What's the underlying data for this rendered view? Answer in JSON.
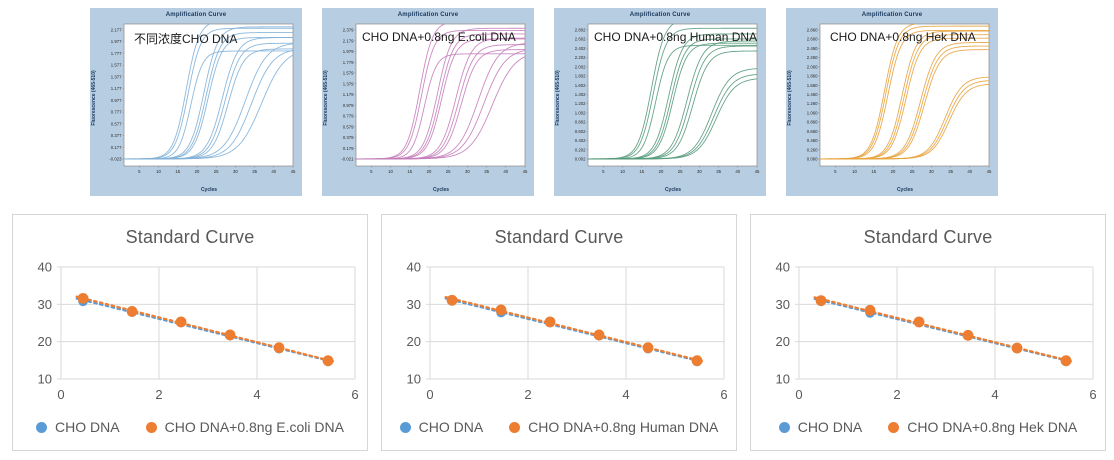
{
  "chart_data": [
    {
      "type": "line",
      "title": "Amplification Curve",
      "annotation": "不同浓度CHO DNA",
      "xlabel": "Cycles",
      "ylabel": "Fluorescence (465-510)",
      "xlim": [
        1,
        45
      ],
      "x_ticks": [
        5,
        10,
        15,
        20,
        25,
        30,
        35,
        40,
        45
      ],
      "y_tick_labels": [
        "2.177",
        "1.977",
        "1.777",
        "1.577",
        "1.377",
        "1.177",
        "0.977",
        "0.777",
        "0.577",
        "0.377",
        "0.177",
        "-0.023"
      ],
      "line_color": "#7fb0d8",
      "panel_bg": "#b7cde1",
      "curves": [
        {
          "midpoint": 17.2,
          "plateau": 0.975,
          "steepness": 0.6
        },
        {
          "midpoint": 17.7,
          "plateau": 0.92,
          "steepness": 0.6
        },
        {
          "midpoint": 18.4,
          "plateau": 0.76,
          "steepness": 0.65
        },
        {
          "midpoint": 21.8,
          "plateau": 0.93,
          "steepness": 0.55
        },
        {
          "midpoint": 22.4,
          "plateau": 0.89,
          "steepness": 0.55
        },
        {
          "midpoint": 22.9,
          "plateau": 0.855,
          "steepness": 0.55
        },
        {
          "midpoint": 26.6,
          "plateau": 0.855,
          "steepness": 0.5
        },
        {
          "midpoint": 27.3,
          "plateau": 0.815,
          "steepness": 0.5
        },
        {
          "midpoint": 28.1,
          "plateau": 0.775,
          "steepness": 0.5
        },
        {
          "midpoint": 32.6,
          "plateau": 0.82,
          "steepness": 0.36
        },
        {
          "midpoint": 34.2,
          "plateau": 0.78,
          "steepness": 0.36
        },
        {
          "midpoint": 36.8,
          "plateau": 0.78,
          "steepness": 0.33
        }
      ]
    },
    {
      "type": "line",
      "title": "Amplification Curve",
      "annotation": "CHO DNA+0.8ng E.coli DNA",
      "xlabel": "Cycles",
      "ylabel": "Fluorescence (465-510)",
      "xlim": [
        1,
        45
      ],
      "x_ticks": [
        5,
        10,
        15,
        20,
        25,
        30,
        35,
        40,
        45
      ],
      "y_tick_labels": [
        "2.379",
        "2.179",
        "1.979",
        "1.779",
        "1.579",
        "1.379",
        "1.179",
        "0.979",
        "0.779",
        "0.579",
        "0.379",
        "0.179",
        "-0.021"
      ],
      "line_color": "#c57dbb",
      "panel_bg": "#b7cde1",
      "curves": [
        {
          "midpoint": 17.6,
          "plateau": 0.97,
          "steepness": 0.6
        },
        {
          "midpoint": 18.1,
          "plateau": 0.905,
          "steepness": 0.6
        },
        {
          "midpoint": 18.8,
          "plateau": 0.74,
          "steepness": 0.65
        },
        {
          "midpoint": 22.2,
          "plateau": 0.92,
          "steepness": 0.55
        },
        {
          "midpoint": 22.8,
          "plateau": 0.88,
          "steepness": 0.55
        },
        {
          "midpoint": 23.3,
          "plateau": 0.845,
          "steepness": 0.55
        },
        {
          "midpoint": 27.0,
          "plateau": 0.85,
          "steepness": 0.5
        },
        {
          "midpoint": 27.7,
          "plateau": 0.805,
          "steepness": 0.5
        },
        {
          "midpoint": 28.4,
          "plateau": 0.77,
          "steepness": 0.5
        },
        {
          "midpoint": 32.8,
          "plateau": 0.82,
          "steepness": 0.38
        },
        {
          "midpoint": 34.3,
          "plateau": 0.78,
          "steepness": 0.36
        },
        {
          "midpoint": 36.5,
          "plateau": 0.76,
          "steepness": 0.34
        }
      ]
    },
    {
      "type": "line",
      "title": "Amplification Curve",
      "annotation": "CHO DNA+0.8ng Human DNA",
      "xlabel": "Cycles",
      "ylabel": "Fluorescence (465-510)",
      "xlim": [
        1,
        45
      ],
      "x_ticks": [
        5,
        10,
        15,
        20,
        25,
        30,
        35,
        40,
        45
      ],
      "y_tick_labels": [
        "2.802",
        "2.602",
        "2.402",
        "2.202",
        "2.002",
        "1.802",
        "1.602",
        "1.402",
        "1.202",
        "1.002",
        "0.802",
        "0.602",
        "0.402",
        "0.202",
        "0.002"
      ],
      "line_color": "#569a7c",
      "panel_bg": "#b7cde1",
      "curves": [
        {
          "midpoint": 17.5,
          "plateau": 0.985,
          "steepness": 0.58
        },
        {
          "midpoint": 18.0,
          "plateau": 0.92,
          "steepness": 0.58
        },
        {
          "midpoint": 18.6,
          "plateau": 0.8,
          "steepness": 0.62
        },
        {
          "midpoint": 22.0,
          "plateau": 0.88,
          "steepness": 0.55
        },
        {
          "midpoint": 22.6,
          "plateau": 0.845,
          "steepness": 0.55
        },
        {
          "midpoint": 23.1,
          "plateau": 0.815,
          "steepness": 0.55
        },
        {
          "midpoint": 26.8,
          "plateau": 0.83,
          "steepness": 0.5
        },
        {
          "midpoint": 27.5,
          "plateau": 0.795,
          "steepness": 0.5
        },
        {
          "midpoint": 28.3,
          "plateau": 0.76,
          "steepness": 0.5
        },
        {
          "midpoint": 33.2,
          "plateau": 0.64,
          "steepness": 0.42
        },
        {
          "midpoint": 33.8,
          "plateau": 0.6,
          "steepness": 0.42
        },
        {
          "midpoint": 34.4,
          "plateau": 0.57,
          "steepness": 0.42
        }
      ]
    },
    {
      "type": "line",
      "title": "Amplification Curve",
      "annotation": "CHO DNA+0.8ng Hek DNA",
      "xlabel": "Cycles",
      "ylabel": "Fluorescence (465-510)",
      "xlim": [
        1,
        45
      ],
      "x_ticks": [
        5,
        10,
        15,
        20,
        25,
        30,
        35,
        40,
        45
      ],
      "y_tick_labels": [
        "2.860",
        "2.660",
        "2.460",
        "2.260",
        "2.060",
        "1.860",
        "1.660",
        "1.460",
        "1.260",
        "1.060",
        "0.860",
        "0.660",
        "0.460",
        "0.260",
        "0.060"
      ],
      "line_color": "#e8a23c",
      "panel_bg": "#b7cde1",
      "curves": [
        {
          "midpoint": 17.8,
          "plateau": 0.96,
          "steepness": 0.58
        },
        {
          "midpoint": 18.2,
          "plateau": 0.935,
          "steepness": 0.58
        },
        {
          "midpoint": 18.7,
          "plateau": 0.905,
          "steepness": 0.58
        },
        {
          "midpoint": 22.4,
          "plateau": 0.9,
          "steepness": 0.55
        },
        {
          "midpoint": 22.9,
          "plateau": 0.875,
          "steepness": 0.55
        },
        {
          "midpoint": 23.4,
          "plateau": 0.85,
          "steepness": 0.55
        },
        {
          "midpoint": 27.2,
          "plateau": 0.82,
          "steepness": 0.5
        },
        {
          "midpoint": 27.7,
          "plateau": 0.795,
          "steepness": 0.5
        },
        {
          "midpoint": 28.2,
          "plateau": 0.77,
          "steepness": 0.5
        },
        {
          "midpoint": 33.6,
          "plateau": 0.58,
          "steepness": 0.45
        },
        {
          "midpoint": 34.1,
          "plateau": 0.555,
          "steepness": 0.45
        },
        {
          "midpoint": 34.6,
          "plateau": 0.53,
          "steepness": 0.45
        }
      ]
    },
    {
      "type": "scatter",
      "title": "Standard Curve",
      "xlim": [
        0,
        6
      ],
      "ylim": [
        10,
        40
      ],
      "x_ticks": [
        0,
        2,
        4,
        6
      ],
      "y_ticks": [
        10,
        20,
        30,
        40
      ],
      "grid": true,
      "legend_position": "bottom",
      "series": [
        {
          "name": "CHO DNA",
          "color": "#5b9bd5",
          "marker": "circle",
          "x": [
            0.45,
            1.45,
            2.45,
            3.45,
            4.45,
            5.45
          ],
          "y": [
            30.8,
            27.9,
            25.1,
            21.6,
            18.1,
            14.7
          ],
          "trendline": "dotted"
        },
        {
          "name": "CHO DNA+0.8ng E.coli DNA",
          "color": "#ed7d31",
          "marker": "circle",
          "x": [
            0.45,
            1.45,
            2.45,
            3.45,
            4.45,
            5.45
          ],
          "y": [
            31.6,
            28.1,
            25.3,
            21.8,
            18.4,
            14.9
          ],
          "trendline": "dotted"
        }
      ]
    },
    {
      "type": "scatter",
      "title": "Standard Curve",
      "xlim": [
        0,
        6
      ],
      "ylim": [
        10,
        40
      ],
      "x_ticks": [
        0,
        2,
        4,
        6
      ],
      "y_ticks": [
        10,
        20,
        30,
        40
      ],
      "grid": true,
      "legend_position": "bottom",
      "series": [
        {
          "name": "CHO DNA",
          "color": "#5b9bd5",
          "marker": "circle",
          "x": [
            0.45,
            1.45,
            2.45,
            3.45,
            4.45,
            5.45
          ],
          "y": [
            30.9,
            27.8,
            25.1,
            21.6,
            18.1,
            14.7
          ],
          "trendline": "dotted"
        },
        {
          "name": "CHO DNA+0.8ng Human DNA",
          "color": "#ed7d31",
          "marker": "circle",
          "x": [
            0.45,
            1.45,
            2.45,
            3.45,
            4.45,
            5.45
          ],
          "y": [
            31.1,
            28.5,
            25.3,
            21.8,
            18.4,
            14.9
          ],
          "trendline": "dotted"
        }
      ]
    },
    {
      "type": "scatter",
      "title": "Standard Curve",
      "xlim": [
        0,
        6
      ],
      "ylim": [
        10,
        40
      ],
      "x_ticks": [
        0,
        2,
        4,
        6
      ],
      "y_ticks": [
        10,
        20,
        30,
        40
      ],
      "grid": true,
      "legend_position": "bottom",
      "series": [
        {
          "name": "CHO DNA",
          "color": "#5b9bd5",
          "marker": "circle",
          "x": [
            0.45,
            1.45,
            2.45,
            3.45,
            4.45,
            5.45
          ],
          "y": [
            30.8,
            27.7,
            25.1,
            21.6,
            18.1,
            14.7
          ],
          "trendline": "dotted"
        },
        {
          "name": "CHO DNA+0.8ng Hek DNA",
          "color": "#ed7d31",
          "marker": "circle",
          "x": [
            0.45,
            1.45,
            2.45,
            3.45,
            4.45,
            5.45
          ],
          "y": [
            31.0,
            28.4,
            25.3,
            21.7,
            18.3,
            14.9
          ],
          "trendline": "dotted"
        }
      ]
    }
  ],
  "style": {
    "grid_color": "#d9d9d9",
    "axis_text_color": "#595959",
    "amp_title_color": "#17365d",
    "plot_border_color": "#8c8c8c"
  }
}
